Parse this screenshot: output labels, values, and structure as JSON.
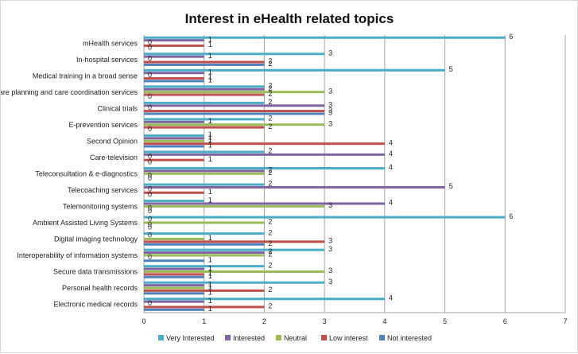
{
  "chart_data": {
    "type": "bar",
    "orientation": "horizontal",
    "title": "Interest in eHealth related topics",
    "xlim": [
      0,
      7
    ],
    "x_ticks": [
      0,
      1,
      2,
      3,
      4,
      5,
      6,
      7
    ],
    "grid": "vertical",
    "legend_position": "bottom",
    "categories": [
      "mHealth services",
      "In-hospital services",
      "Medical training in a broad sense",
      "Care planning and care coordination services",
      "Clinical trials",
      "E-prevention services",
      "Second Opinion",
      "Care-television",
      "Teleconsultation & e-diagnostics",
      "Telecoaching services",
      "Telemonitoring systems",
      "Ambient Assisted Living Systems",
      "Digital imaging technology",
      "Interoperability of information systems",
      "Secure data transmissions",
      "Personal health records",
      "Electronic medical records"
    ],
    "series": [
      {
        "name": "Very Interested",
        "color": "#4bacc6",
        "values": [
          6,
          3,
          5,
          2,
          2,
          2,
          1,
          2,
          4,
          2,
          1,
          6,
          2,
          3,
          2,
          3,
          4
        ]
      },
      {
        "name": "Interested",
        "color": "#8064a2",
        "values": [
          1,
          1,
          1,
          2,
          3,
          1,
          1,
          4,
          2,
          5,
          4,
          0,
          0,
          2,
          1,
          1,
          1
        ]
      },
      {
        "name": "Neutral",
        "color": "#9bbb59",
        "values": [
          0,
          0,
          0,
          3,
          0,
          3,
          1,
          0,
          2,
          0,
          3,
          2,
          1,
          2,
          3,
          1,
          0
        ]
      },
      {
        "name": "Low interest",
        "color": "#c0504d",
        "values": [
          1,
          2,
          1,
          2,
          3,
          2,
          4,
          1,
          0,
          1,
          0,
          0,
          3,
          0,
          1,
          2,
          2
        ]
      },
      {
        "name": "Not interested",
        "color": "#4f81bd",
        "values": [
          0,
          2,
          1,
          0,
          3,
          0,
          1,
          0,
          0,
          0,
          0,
          0,
          2,
          1,
          1,
          1,
          1
        ]
      }
    ]
  }
}
